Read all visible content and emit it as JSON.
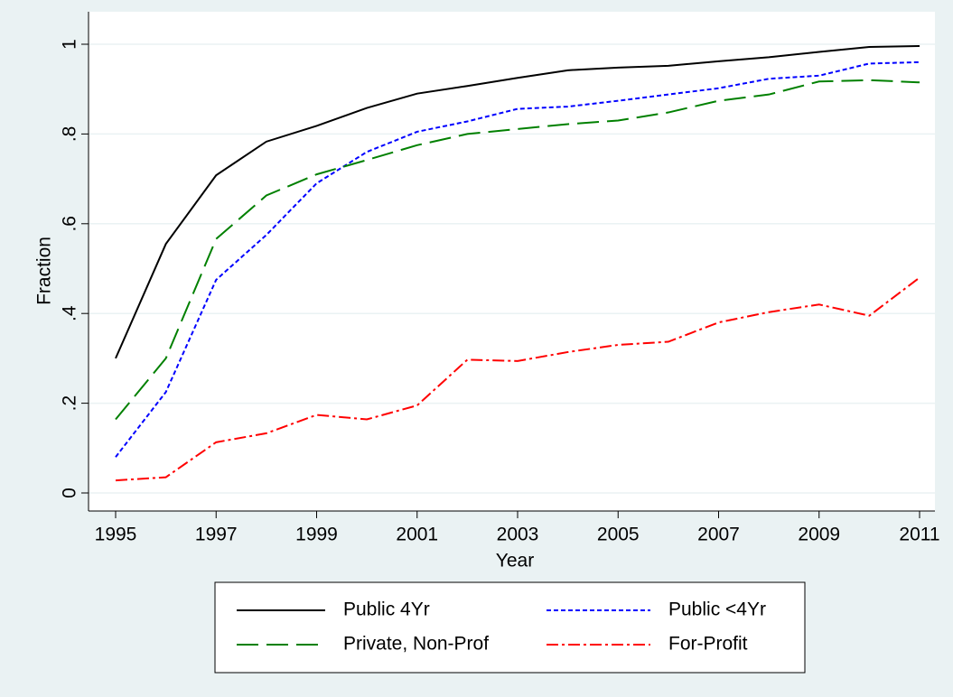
{
  "chart_data": {
    "type": "line",
    "x": [
      1995,
      1996,
      1997,
      1998,
      1999,
      2000,
      2001,
      2002,
      2003,
      2004,
      2005,
      2006,
      2007,
      2008,
      2009,
      2010,
      2011
    ],
    "xlabel": "Year",
    "ylabel": "Fraction",
    "xlim": [
      1995,
      2011
    ],
    "xticks": [
      1995,
      1997,
      1999,
      2001,
      2003,
      2005,
      2007,
      2009,
      2011
    ],
    "ylim": [
      0,
      1
    ],
    "yticks": [
      0,
      {
        "value": 0.2,
        "label": ".2"
      },
      {
        "value": 0.4,
        "label": ".4"
      },
      {
        "value": 0.6,
        "label": ".6"
      },
      {
        "value": 0.8,
        "label": ".8"
      },
      1
    ],
    "grid": true,
    "legend_position": "bottom",
    "series": [
      {
        "name": "Public 4Yr",
        "color": "#000000",
        "values": [
          0.3,
          0.555,
          0.708,
          0.783,
          0.818,
          0.858,
          0.89,
          0.907,
          0.925,
          0.942,
          0.948,
          0.952,
          0.962,
          0.971,
          0.983,
          0.994,
          0.996
        ]
      },
      {
        "name": "Public <4Yr",
        "color": "#0000ff",
        "values": [
          0.08,
          0.225,
          0.475,
          0.575,
          0.69,
          0.76,
          0.805,
          0.828,
          0.856,
          0.861,
          0.874,
          0.888,
          0.902,
          0.923,
          0.93,
          0.957,
          0.96
        ]
      },
      {
        "name": "Private, Non-Prof",
        "color": "#008000",
        "values": [
          0.164,
          0.3,
          0.566,
          0.663,
          0.71,
          0.742,
          0.775,
          0.8,
          0.811,
          0.822,
          0.83,
          0.848,
          0.874,
          0.888,
          0.917,
          0.92,
          0.915
        ]
      },
      {
        "name": "For-Profit",
        "color": "#ff0000",
        "values": [
          0.028,
          0.035,
          0.113,
          0.133,
          0.174,
          0.164,
          0.195,
          0.297,
          0.294,
          0.314,
          0.33,
          0.337,
          0.38,
          0.403,
          0.42,
          0.395,
          0.48
        ]
      }
    ]
  }
}
